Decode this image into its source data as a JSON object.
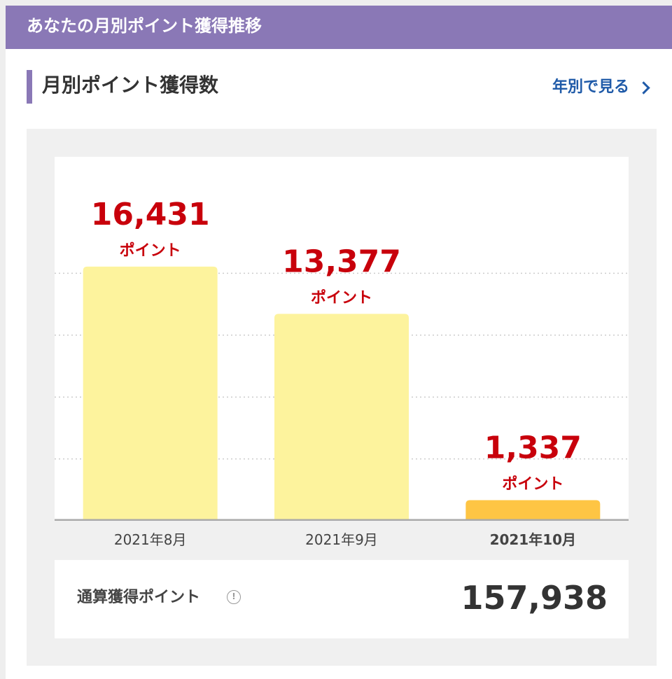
{
  "header": {
    "title": "あなたの月別ポイント獲得推移"
  },
  "section": {
    "title": "月別ポイント獲得数",
    "yearly_link_label": "年別で見る"
  },
  "chart_data": {
    "type": "bar",
    "categories": [
      "2021年8月",
      "2021年9月",
      "2021年10月"
    ],
    "values": [
      16431,
      13377,
      1337
    ],
    "value_labels": [
      "16,431",
      "13,377",
      "1,337"
    ],
    "unit_label": "ポイント",
    "ylim": [
      0,
      20000
    ],
    "grid": true,
    "highlight_index": 2,
    "colors": {
      "bar": "#fdf39d",
      "bar_highlight": "#fec544",
      "value_text": "#c8000b",
      "grid": "#cccccc",
      "baseline": "#aaaaaa",
      "category_text": "#444444"
    }
  },
  "total": {
    "label": "通算獲得ポイント",
    "value": "157,938",
    "info_icon": "info-circle-icon"
  }
}
